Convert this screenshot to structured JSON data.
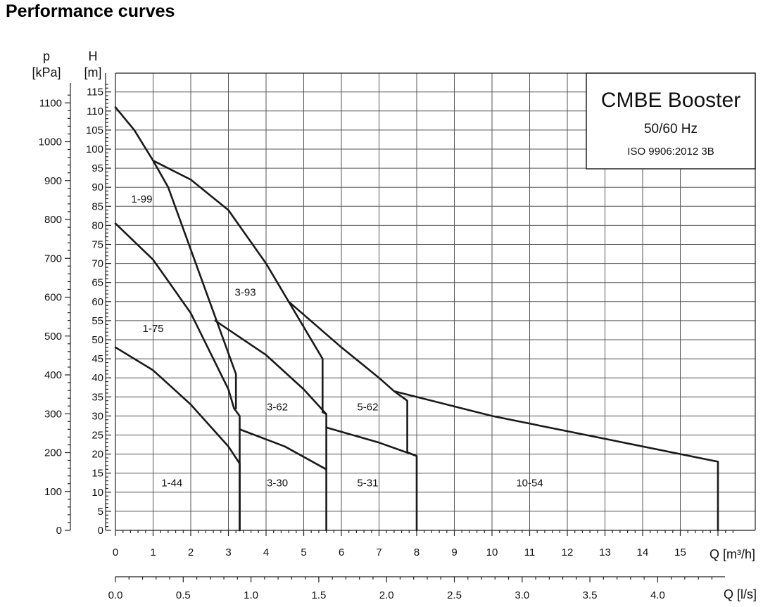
{
  "page": {
    "title": "Performance curves"
  },
  "info_box": {
    "title": "CMBE Booster",
    "frequency": "50/60 Hz",
    "standard": "ISO 9906:2012 3B"
  },
  "chart_data": {
    "type": "line",
    "title": "Performance curves",
    "axes": {
      "p": {
        "symbol": "p",
        "unit": "[kPa]",
        "ticks": [
          0,
          100,
          200,
          300,
          400,
          500,
          600,
          700,
          800,
          900,
          1000,
          1100
        ]
      },
      "H": {
        "symbol": "H",
        "unit": "[m]",
        "ticks": [
          0,
          5,
          10,
          15,
          20,
          25,
          30,
          35,
          40,
          45,
          50,
          55,
          60,
          65,
          70,
          75,
          80,
          85,
          90,
          95,
          100,
          105,
          110,
          115
        ],
        "range": [
          0,
          117
        ]
      },
      "Q_m3h": {
        "label": "Q [m³/h]",
        "ticks": [
          0,
          1,
          2,
          3,
          4,
          5,
          6,
          7,
          8,
          9,
          10,
          11,
          12,
          13,
          14,
          15
        ],
        "range": [
          0,
          16.5
        ]
      },
      "Q_ls": {
        "label": "Q [l/s]",
        "ticks": [
          "0.0",
          "0.5",
          "1.0",
          "1.5",
          "2.0",
          "2.5",
          "3.0",
          "3.5",
          "4.0"
        ]
      }
    },
    "grid": true,
    "series": [
      {
        "name": "1-44",
        "x": [
          0,
          1,
          2,
          3,
          3.3,
          3.3
        ],
        "y": [
          48,
          42,
          33,
          22,
          17.5,
          0
        ]
      },
      {
        "name": "1-75",
        "x": [
          0,
          1,
          2,
          3,
          3.15,
          3.3,
          3.3,
          3.3
        ],
        "y": [
          80.5,
          71,
          57,
          37,
          32,
          30,
          29.5,
          0
        ]
      },
      {
        "name": "1-99",
        "x": [
          0,
          0.5,
          1,
          1.4,
          3.2,
          3.2
        ],
        "y": [
          111,
          105,
          97,
          90,
          41,
          32
        ]
      },
      {
        "name": "3-30",
        "x": [
          3.3,
          4.5,
          5.6,
          5.6
        ],
        "y": [
          26.5,
          22,
          16,
          0
        ]
      },
      {
        "name": "3-62",
        "x": [
          2.65,
          4,
          5,
          5.6,
          5.6
        ],
        "y": [
          55,
          46,
          37,
          30.5,
          16
        ]
      },
      {
        "name": "3-93",
        "x": [
          1,
          2,
          3,
          4,
          4.6,
          5.5,
          5.5,
          5.6
        ],
        "y": [
          97,
          92,
          84,
          70,
          60,
          45,
          31,
          30.5
        ]
      },
      {
        "name": "5-31",
        "x": [
          5.6,
          7,
          8,
          8
        ],
        "y": [
          27,
          23,
          19.5,
          0
        ]
      },
      {
        "name": "5-62",
        "x": [
          4.6,
          6,
          7,
          7.4,
          7.75,
          7.75,
          8
        ],
        "y": [
          60,
          48,
          40,
          36.5,
          34,
          20.5,
          19.5
        ]
      },
      {
        "name": "10-54",
        "x": [
          7.4,
          10,
          13,
          16,
          16,
          16
        ],
        "y": [
          36.5,
          30,
          24,
          18,
          17.5,
          0
        ]
      }
    ],
    "region_labels": [
      {
        "text": "1-99",
        "x": 0.7,
        "y": 86
      },
      {
        "text": "1-75",
        "x": 1.0,
        "y": 52
      },
      {
        "text": "1-44",
        "x": 1.5,
        "y": 11.5
      },
      {
        "text": "3-93",
        "x": 3.45,
        "y": 61.5
      },
      {
        "text": "3-62",
        "x": 4.3,
        "y": 31.5
      },
      {
        "text": "3-30",
        "x": 4.3,
        "y": 11.5
      },
      {
        "text": "5-62",
        "x": 6.7,
        "y": 31.5
      },
      {
        "text": "5-31",
        "x": 6.7,
        "y": 11.5
      },
      {
        "text": "10-54",
        "x": 11,
        "y": 11.5
      }
    ]
  }
}
